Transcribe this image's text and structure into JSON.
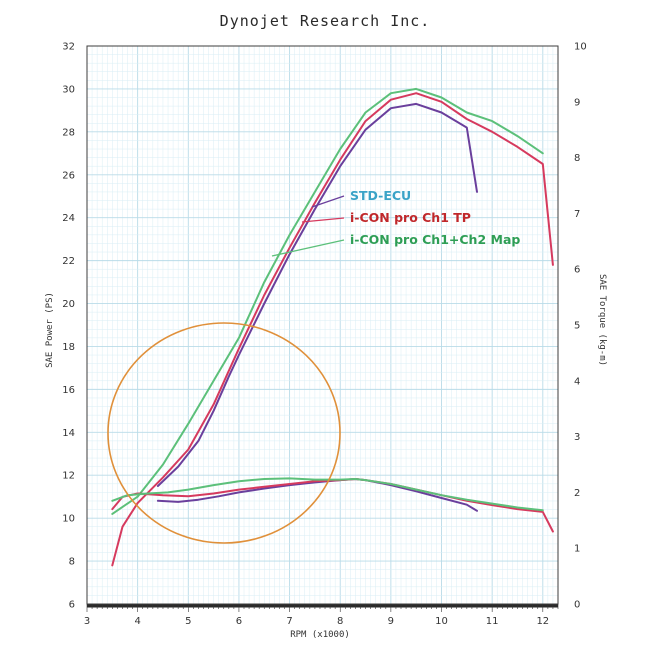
{
  "chart_data": {
    "type": "line",
    "title": "Dynojet  Research  Inc.",
    "xlabel": "RPM (x1000)",
    "ylabel_left": "SAE Power (PS)",
    "ylabel_right": "SAE Torque (kg-m)",
    "xlim": [
      3,
      12.3
    ],
    "ylim_left": [
      6,
      32
    ],
    "ylim_right": [
      0,
      10
    ],
    "x_ticks": [
      3,
      4,
      5,
      6,
      7,
      8,
      9,
      10,
      11,
      12
    ],
    "y_ticks_left": [
      6,
      8,
      10,
      12,
      14,
      16,
      18,
      20,
      22,
      24,
      26,
      28,
      30,
      32
    ],
    "y_ticks_right": [
      0,
      1,
      2,
      3,
      4,
      5,
      6,
      7,
      8,
      9,
      10
    ],
    "grid": true,
    "legend": [
      "STD-ECU",
      "i-CON pro Ch1 TP",
      "i-CON pro Ch1+Ch2 Map"
    ],
    "series": [
      {
        "name": "STD-ECU",
        "color": "#6a3f9c",
        "metric": "power",
        "axis": "left",
        "x": [
          4.4,
          4.8,
          5.2,
          5.5,
          5.8,
          6.0,
          6.5,
          7.0,
          7.5,
          8.0,
          8.5,
          9.0,
          9.5,
          10.0,
          10.5,
          10.7
        ],
        "y": [
          11.5,
          12.4,
          13.6,
          15.0,
          16.6,
          17.6,
          20.0,
          22.3,
          24.4,
          26.4,
          28.1,
          29.1,
          29.3,
          28.9,
          28.2,
          25.2
        ]
      },
      {
        "name": "i-CON pro Ch1 TP",
        "color": "#d63a5e",
        "metric": "power",
        "axis": "left",
        "x": [
          3.5,
          3.7,
          4.0,
          4.5,
          5.0,
          5.5,
          6.0,
          6.5,
          7.0,
          7.5,
          8.0,
          8.5,
          9.0,
          9.5,
          10.0,
          10.5,
          11.0,
          11.5,
          12.0,
          12.2
        ],
        "y": [
          7.8,
          9.6,
          10.7,
          11.9,
          13.2,
          15.3,
          17.9,
          20.4,
          22.6,
          24.7,
          26.7,
          28.5,
          29.5,
          29.8,
          29.4,
          28.6,
          28.0,
          27.3,
          26.5,
          21.8
        ]
      },
      {
        "name": "i-CON pro Ch1+Ch2 Map",
        "color": "#5cc07a",
        "metric": "power",
        "axis": "left",
        "x": [
          3.5,
          4.0,
          4.5,
          5.0,
          5.5,
          6.0,
          6.5,
          7.0,
          7.5,
          8.0,
          8.5,
          9.0,
          9.5,
          10.0,
          10.5,
          11.0,
          11.5,
          12.0
        ],
        "y": [
          10.2,
          11.0,
          12.5,
          14.4,
          16.4,
          18.4,
          21.0,
          23.2,
          25.2,
          27.2,
          28.9,
          29.8,
          30.0,
          29.6,
          28.9,
          28.5,
          27.8,
          27.0
        ]
      },
      {
        "name": "STD-ECU",
        "color": "#6a3f9c",
        "metric": "torque",
        "axis": "right",
        "x": [
          4.4,
          4.8,
          5.2,
          5.6,
          6.0,
          6.5,
          7.0,
          7.5,
          8.0,
          8.3,
          8.5,
          9.0,
          9.5,
          10.0,
          10.5,
          10.7
        ],
        "y": [
          1.85,
          1.83,
          1.87,
          1.93,
          2.0,
          2.07,
          2.13,
          2.18,
          2.22,
          2.24,
          2.22,
          2.13,
          2.02,
          1.9,
          1.78,
          1.67
        ]
      },
      {
        "name": "i-CON pro Ch1 TP",
        "color": "#d63a5e",
        "metric": "torque",
        "axis": "right",
        "x": [
          3.5,
          3.7,
          4.0,
          4.5,
          5.0,
          5.5,
          6.0,
          6.5,
          7.0,
          7.5,
          8.0,
          8.3,
          8.5,
          9.0,
          9.5,
          10.0,
          10.5,
          11.0,
          11.5,
          12.0,
          12.2
        ],
        "y": [
          1.7,
          1.92,
          1.98,
          1.95,
          1.93,
          1.98,
          2.05,
          2.1,
          2.15,
          2.2,
          2.22,
          2.24,
          2.22,
          2.15,
          2.05,
          1.95,
          1.85,
          1.77,
          1.7,
          1.65,
          1.3
        ]
      },
      {
        "name": "i-CON pro Ch1+Ch2 Map",
        "color": "#5cc07a",
        "metric": "torque",
        "axis": "right",
        "x": [
          3.5,
          3.8,
          4.2,
          4.6,
          5.0,
          5.5,
          6.0,
          6.5,
          7.0,
          7.5,
          8.0,
          8.3,
          8.5,
          9.0,
          9.5,
          10.0,
          10.5,
          11.0,
          11.5,
          12.0
        ],
        "y": [
          1.85,
          1.95,
          1.98,
          2.0,
          2.05,
          2.13,
          2.2,
          2.24,
          2.25,
          2.23,
          2.23,
          2.24,
          2.22,
          2.15,
          2.05,
          1.95,
          1.87,
          1.8,
          1.73,
          1.68
        ]
      }
    ]
  }
}
